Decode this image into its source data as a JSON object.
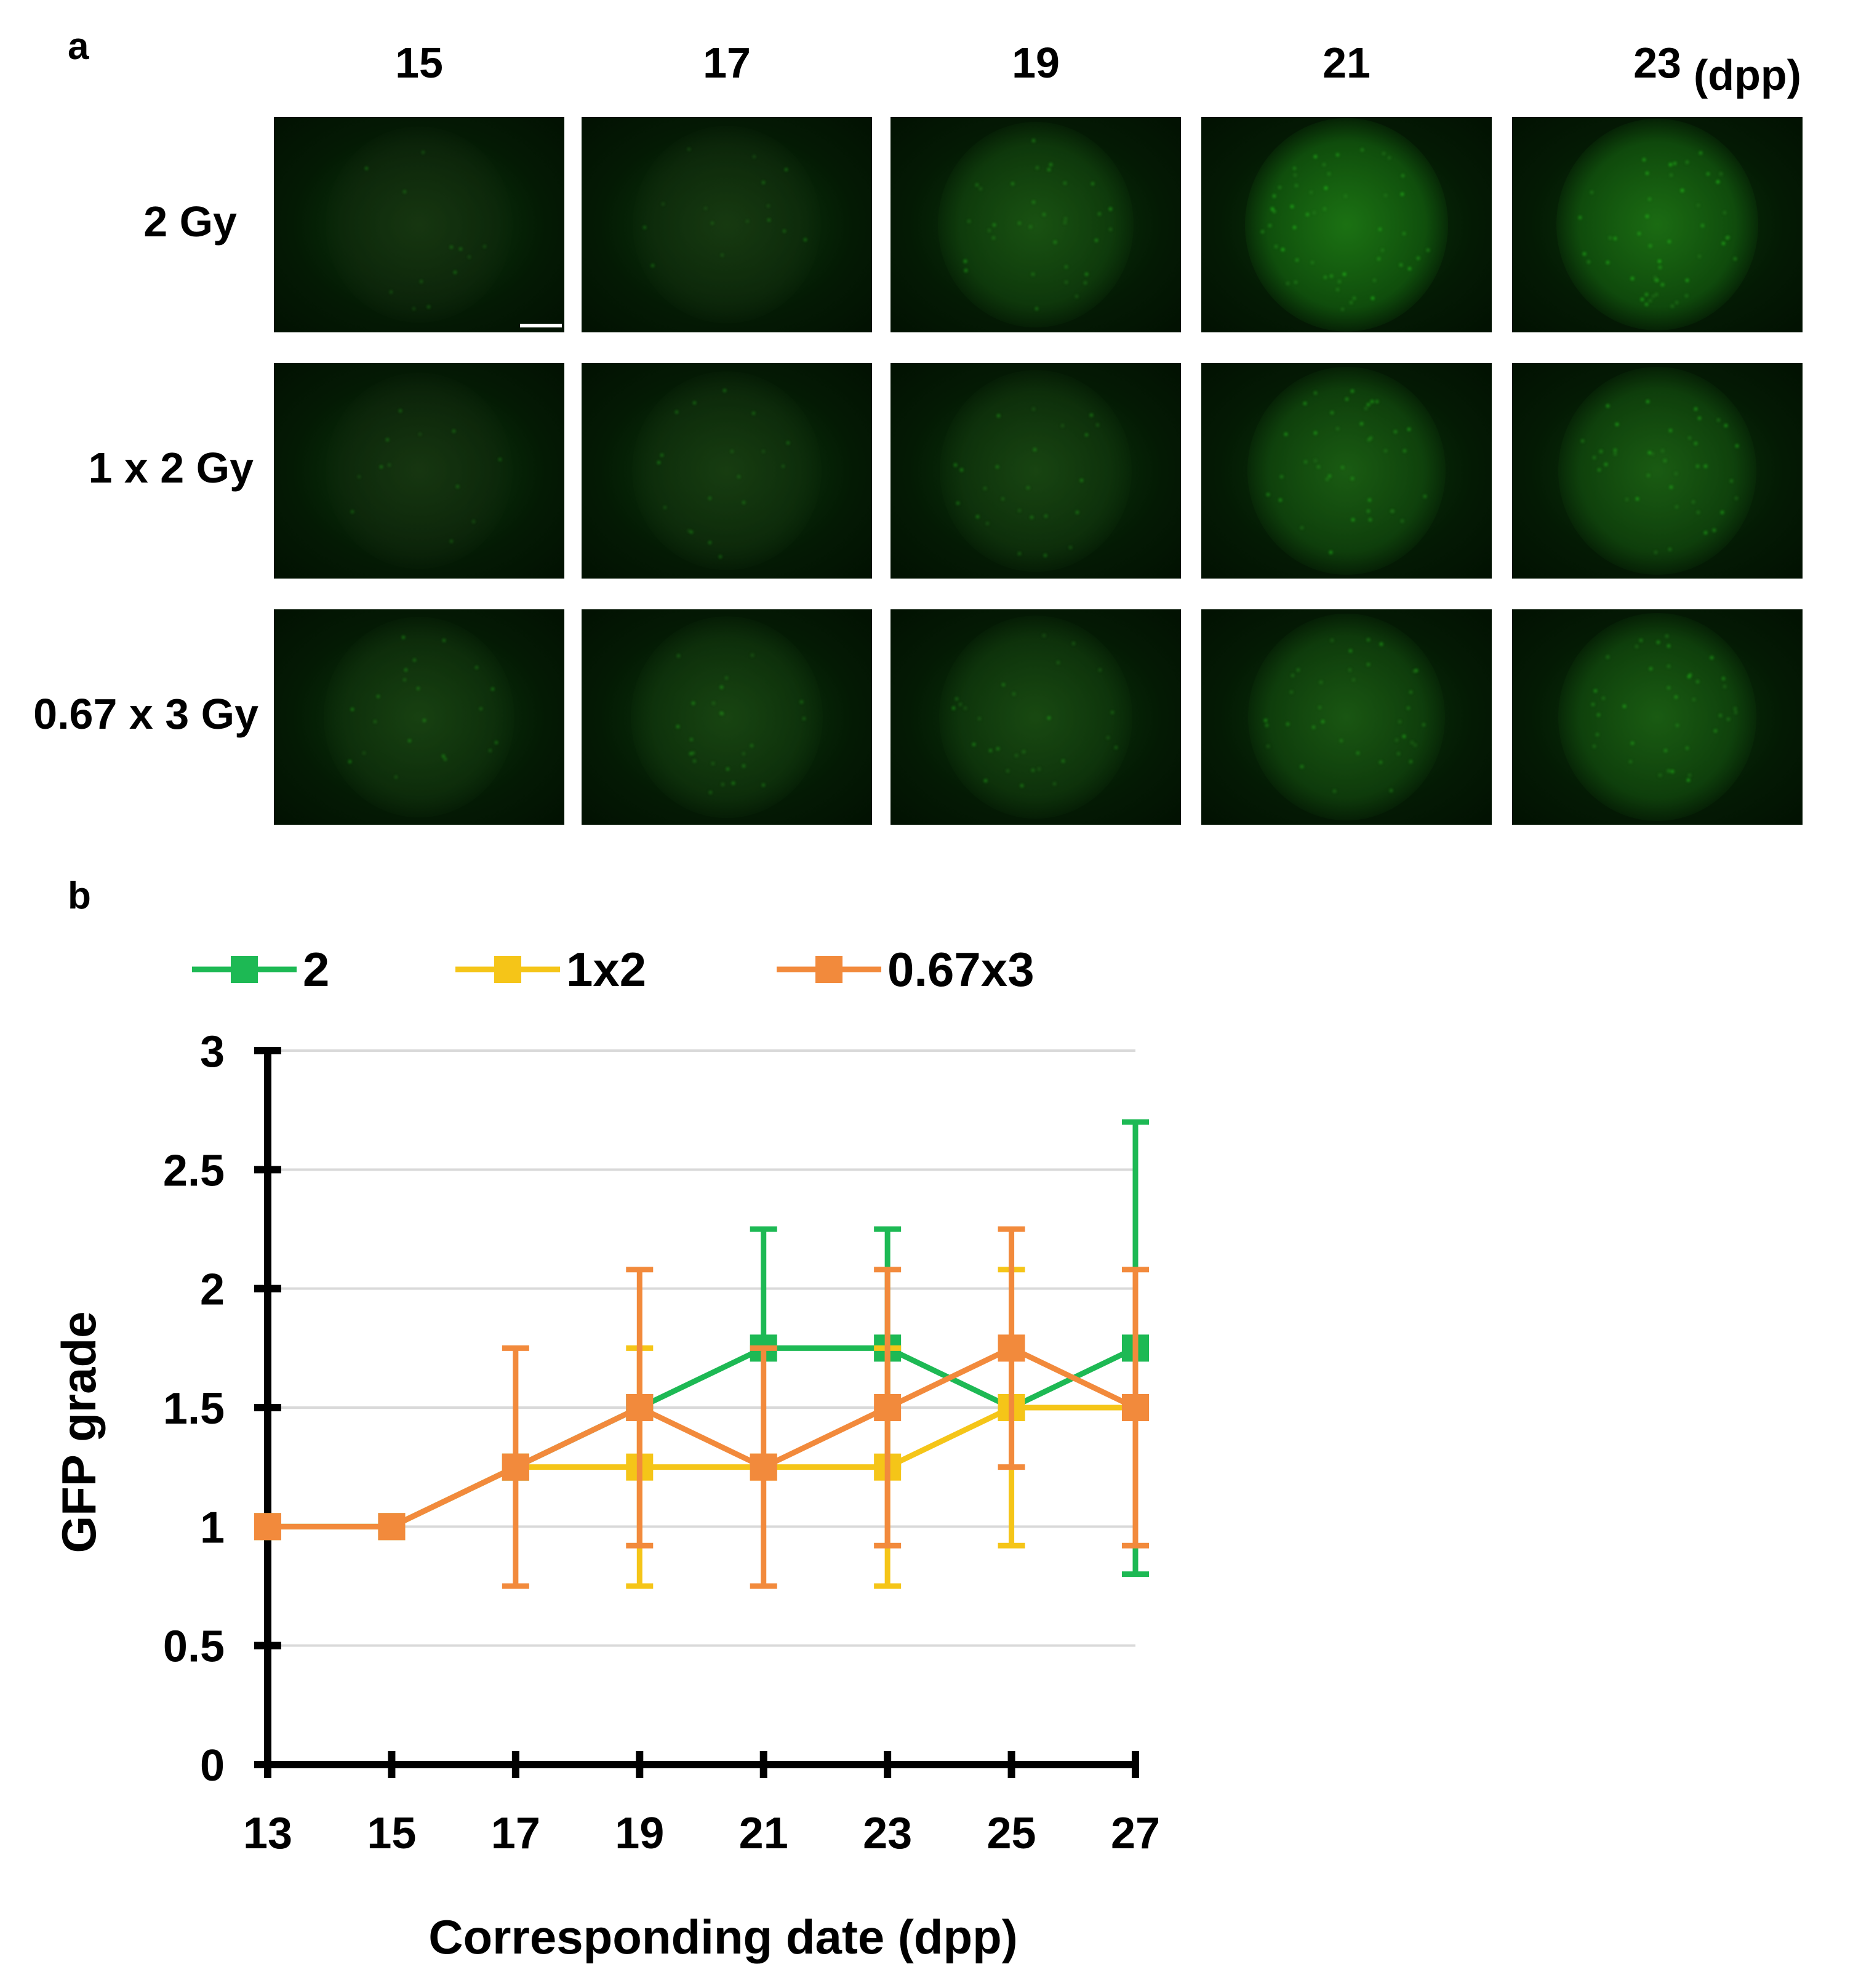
{
  "panels": {
    "a": "a",
    "b": "b"
  },
  "micrographs": {
    "columns": [
      "15",
      "17",
      "19",
      "21",
      "23"
    ],
    "unit": "(dpp)",
    "rows": [
      "2 Gy",
      "1 x 2 Gy",
      "0.67 x 3 Gy"
    ],
    "gfp_intensity": [
      [
        0.1,
        0.15,
        0.45,
        0.75,
        0.7
      ],
      [
        0.1,
        0.2,
        0.3,
        0.55,
        0.55
      ],
      [
        0.25,
        0.3,
        0.35,
        0.5,
        0.55
      ]
    ],
    "scale_bar": true
  },
  "chart_data": {
    "type": "line",
    "xlabel": "Corresponding  date (dpp)",
    "ylabel": "GFP grade",
    "x": [
      13,
      15,
      17,
      19,
      21,
      23,
      25,
      27
    ],
    "xlim": [
      13,
      27
    ],
    "ylim": [
      0,
      3
    ],
    "yticks": [
      "0",
      "0.5",
      "1",
      "1.5",
      "2",
      "2.5",
      "3"
    ],
    "xticks": [
      "13",
      "15",
      "17",
      "19",
      "21",
      "23",
      "25",
      "27"
    ],
    "grid": "horizontal",
    "legend_position": "top",
    "series": [
      {
        "name": "2",
        "color": "#1db954",
        "values": [
          1,
          1,
          1.25,
          1.5,
          1.75,
          1.75,
          1.5,
          1.75
        ],
        "err_low": [
          null,
          null,
          null,
          null,
          null,
          1.25,
          null,
          0.8
        ],
        "err_high": [
          null,
          null,
          null,
          null,
          2.25,
          2.25,
          null,
          2.7
        ]
      },
      {
        "name": "1x2",
        "color": "#f5c518",
        "values": [
          1,
          1,
          1.25,
          1.25,
          1.25,
          1.25,
          1.5,
          1.5
        ],
        "err_low": [
          null,
          null,
          null,
          0.75,
          null,
          0.75,
          0.92,
          null
        ],
        "err_high": [
          null,
          null,
          null,
          1.75,
          null,
          1.75,
          2.08,
          null
        ]
      },
      {
        "name": "0.67x3",
        "color": "#f28a3c",
        "values": [
          1,
          1,
          1.25,
          1.5,
          1.25,
          1.5,
          1.75,
          1.5
        ],
        "err_low": [
          null,
          null,
          0.75,
          0.92,
          0.75,
          0.92,
          1.25,
          0.92
        ],
        "err_high": [
          null,
          null,
          1.75,
          2.08,
          1.75,
          2.08,
          2.25,
          2.08
        ]
      }
    ]
  }
}
